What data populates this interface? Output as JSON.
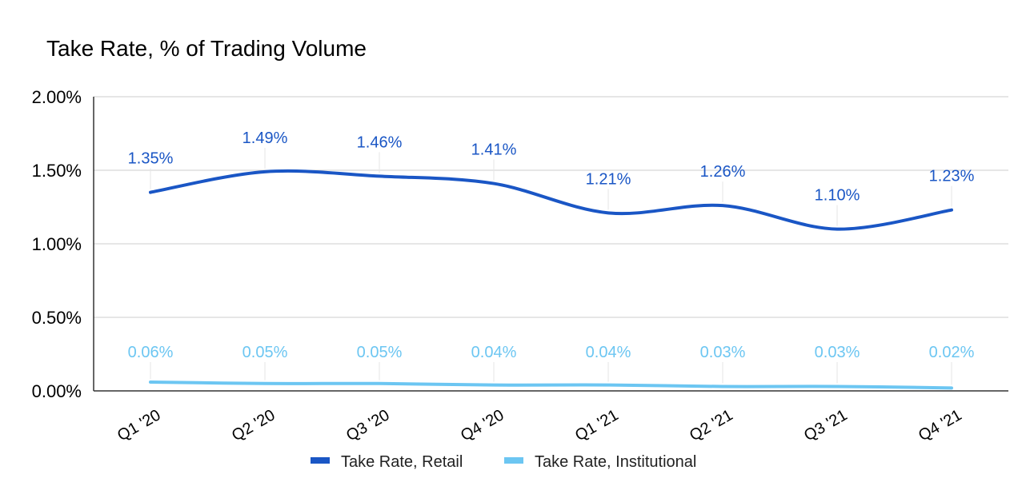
{
  "chart_data": {
    "type": "line",
    "title": "Take Rate, % of Trading Volume",
    "xlabel": "",
    "ylabel": "",
    "categories": [
      "Q1 '20",
      "Q2 '20",
      "Q3 '20",
      "Q4 '20",
      "Q1 '21",
      "Q2 '21",
      "Q3 '21",
      "Q4 '21"
    ],
    "ylim": [
      0,
      2.0
    ],
    "yticks": [
      0,
      0.5,
      1.0,
      1.5,
      2.0
    ],
    "ytick_labels": [
      "0.00%",
      "0.50%",
      "1.00%",
      "1.50%",
      "2.00%"
    ],
    "grid": true,
    "legend_position": "bottom",
    "series": [
      {
        "name": "Take Rate, Retail",
        "color": "#1a56c5",
        "values": [
          1.35,
          1.49,
          1.46,
          1.41,
          1.21,
          1.26,
          1.1,
          1.23
        ],
        "labels": [
          "1.35%",
          "1.49%",
          "1.46%",
          "1.41%",
          "1.21%",
          "1.26%",
          "1.10%",
          "1.23%"
        ]
      },
      {
        "name": "Take Rate, Institutional",
        "color": "#6cc6f2",
        "values": [
          0.06,
          0.05,
          0.05,
          0.04,
          0.04,
          0.03,
          0.03,
          0.02
        ],
        "labels": [
          "0.06%",
          "0.05%",
          "0.05%",
          "0.04%",
          "0.04%",
          "0.03%",
          "0.03%",
          "0.02%"
        ]
      }
    ]
  }
}
